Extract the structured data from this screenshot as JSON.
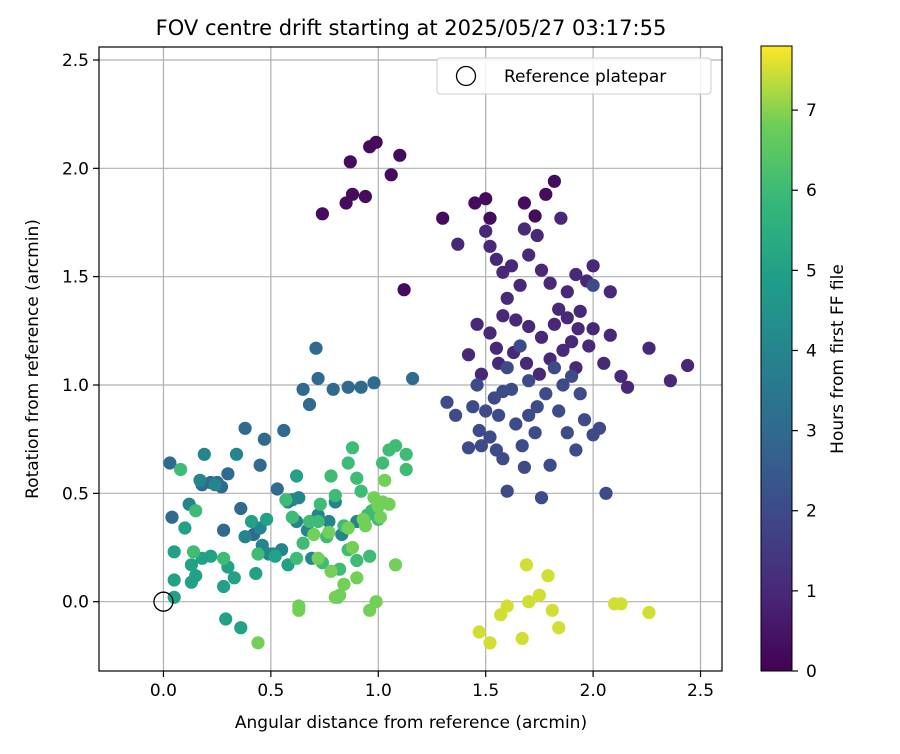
{
  "chart_data": {
    "type": "scatter",
    "title": "FOV centre drift starting at 2025/05/27 03:17:55",
    "xlabel": "Angular distance from reference (arcmin)",
    "ylabel": "Rotation from reference (arcmin)",
    "xlim": [
      -0.3,
      2.6
    ],
    "ylim": [
      -0.32,
      2.56
    ],
    "xticks": [
      0.0,
      0.5,
      1.0,
      1.5,
      2.0,
      2.5
    ],
    "xtick_labels": [
      "0.0",
      "0.5",
      "1.0",
      "1.5",
      "2.0",
      "2.5"
    ],
    "yticks": [
      0.0,
      0.5,
      1.0,
      1.5,
      2.0,
      2.5
    ],
    "ytick_labels": [
      "0.0",
      "0.5",
      "1.0",
      "1.5",
      "2.0",
      "2.5"
    ],
    "grid": true,
    "legend": {
      "placement": "upper-right",
      "entries": [
        "Reference platepar"
      ]
    },
    "reference_point": {
      "x": 0.0,
      "y": 0.0,
      "marker": "open-circle"
    },
    "colorbar": {
      "label": "Hours from first FF file",
      "colormap": "viridis",
      "range": [
        0,
        7.8
      ],
      "ticks": [
        0,
        1,
        2,
        3,
        4,
        5,
        6,
        7
      ],
      "tick_labels": [
        "0",
        "1",
        "2",
        "3",
        "4",
        "5",
        "6",
        "7"
      ]
    },
    "point_groups": [
      {
        "hours_range": [
          0.0,
          0.5
        ],
        "points": [
          [
            0.74,
            1.79
          ],
          [
            0.85,
            1.84
          ],
          [
            0.87,
            2.03
          ],
          [
            0.88,
            1.88
          ],
          [
            0.94,
            1.87
          ],
          [
            0.96,
            2.1
          ],
          [
            0.99,
            2.12
          ],
          [
            1.06,
            1.97
          ],
          [
            1.1,
            2.06
          ],
          [
            1.12,
            1.44
          ],
          [
            1.3,
            1.77
          ],
          [
            1.45,
            1.84
          ],
          [
            1.5,
            1.86
          ],
          [
            1.52,
            1.77
          ],
          [
            1.68,
            1.84
          ],
          [
            1.73,
            1.78
          ],
          [
            1.78,
            1.88
          ],
          [
            1.82,
            1.94
          ]
        ]
      },
      {
        "hours_range": [
          0.5,
          1.5
        ],
        "points": [
          [
            1.37,
            1.65
          ],
          [
            1.5,
            1.71
          ],
          [
            1.52,
            1.64
          ],
          [
            1.55,
            1.58
          ],
          [
            1.58,
            1.52
          ],
          [
            1.62,
            1.55
          ],
          [
            1.66,
            1.46
          ],
          [
            1.68,
            1.72
          ],
          [
            1.7,
            1.6
          ],
          [
            1.74,
            1.69
          ],
          [
            1.76,
            1.53
          ],
          [
            1.8,
            1.47
          ],
          [
            1.85,
            1.77
          ],
          [
            1.88,
            1.43
          ],
          [
            1.92,
            1.51
          ],
          [
            1.94,
            1.34
          ],
          [
            1.97,
            1.48
          ],
          [
            2.0,
            1.55
          ],
          [
            2.08,
            1.43
          ],
          [
            1.46,
            1.28
          ],
          [
            1.52,
            1.24
          ],
          [
            1.58,
            1.32
          ],
          [
            1.64,
            1.3
          ],
          [
            1.7,
            1.27
          ],
          [
            1.76,
            1.22
          ],
          [
            1.82,
            1.28
          ],
          [
            1.88,
            1.31
          ],
          [
            1.93,
            1.26
          ],
          [
            1.98,
            1.18
          ],
          [
            2.0,
            1.26
          ],
          [
            2.05,
            1.1
          ],
          [
            1.42,
            1.14
          ],
          [
            1.48,
            1.05
          ],
          [
            1.56,
            1.1
          ],
          [
            1.63,
            1.15
          ],
          [
            1.69,
            1.1
          ],
          [
            1.75,
            1.05
          ],
          [
            1.8,
            1.12
          ],
          [
            1.86,
            1.16
          ],
          [
            1.92,
            1.08
          ],
          [
            2.08,
            1.23
          ],
          [
            2.13,
            1.04
          ],
          [
            2.16,
            0.99
          ],
          [
            2.26,
            1.17
          ],
          [
            2.36,
            1.02
          ],
          [
            2.44,
            1.09
          ],
          [
            1.9,
            1.2
          ],
          [
            1.84,
            1.35
          ],
          [
            1.6,
            1.4
          ],
          [
            1.55,
            1.17
          ]
        ]
      },
      {
        "hours_range": [
          1.5,
          2.5
        ],
        "points": [
          [
            1.32,
            0.92
          ],
          [
            1.36,
            0.86
          ],
          [
            1.42,
            0.71
          ],
          [
            1.44,
            0.9
          ],
          [
            1.47,
            0.79
          ],
          [
            1.52,
            0.76
          ],
          [
            1.55,
            0.7
          ],
          [
            1.58,
            0.66
          ],
          [
            1.6,
            0.51
          ],
          [
            1.64,
            0.82
          ],
          [
            1.67,
            0.72
          ],
          [
            1.7,
            0.86
          ],
          [
            1.73,
            0.78
          ],
          [
            1.76,
            0.48
          ],
          [
            1.8,
            0.63
          ],
          [
            1.84,
            0.88
          ],
          [
            1.88,
            0.78
          ],
          [
            1.92,
            0.7
          ],
          [
            1.96,
            0.84
          ],
          [
            2.0,
            0.77
          ],
          [
            2.03,
            0.8
          ],
          [
            2.06,
            0.5
          ],
          [
            1.46,
            1.0
          ],
          [
            1.54,
            0.94
          ],
          [
            1.62,
            0.98
          ],
          [
            1.7,
            1.02
          ],
          [
            1.78,
            0.96
          ],
          [
            1.86,
            1.0
          ],
          [
            1.94,
            0.96
          ],
          [
            2.0,
            1.46
          ],
          [
            1.6,
            1.08
          ],
          [
            1.66,
            1.18
          ],
          [
            1.74,
            0.9
          ],
          [
            1.5,
            0.88
          ],
          [
            1.58,
            0.97
          ],
          [
            1.82,
            1.08
          ],
          [
            1.48,
            0.72
          ],
          [
            1.9,
            1.04
          ],
          [
            1.68,
            0.62
          ],
          [
            1.56,
            0.86
          ]
        ]
      },
      {
        "hours_range": [
          2.5,
          3.5
        ],
        "points": [
          [
            0.65,
            0.98
          ],
          [
            0.68,
            0.91
          ],
          [
            0.71,
            1.17
          ],
          [
            0.72,
            1.03
          ],
          [
            0.79,
            0.98
          ],
          [
            0.86,
            0.99
          ],
          [
            0.92,
            0.99
          ],
          [
            0.98,
            1.01
          ],
          [
            1.16,
            1.03
          ],
          [
            0.03,
            0.64
          ],
          [
            0.18,
            0.54
          ],
          [
            0.27,
            0.53
          ],
          [
            0.3,
            0.59
          ],
          [
            0.36,
            0.43
          ],
          [
            0.38,
            0.8
          ],
          [
            0.45,
            0.63
          ],
          [
            0.47,
            0.75
          ],
          [
            0.53,
            0.52
          ],
          [
            0.56,
            0.79
          ],
          [
            0.28,
            0.33
          ],
          [
            0.04,
            0.39
          ],
          [
            0.42,
            0.31
          ],
          [
            0.22,
            0.55
          ],
          [
            0.25,
            0.55
          ]
        ]
      },
      {
        "hours_range": [
          3.5,
          4.5
        ],
        "points": [
          [
            0.12,
            0.45
          ],
          [
            0.17,
            0.56
          ],
          [
            0.19,
            0.68
          ],
          [
            0.24,
            0.54
          ],
          [
            0.34,
            0.68
          ],
          [
            0.38,
            0.3
          ],
          [
            0.45,
            0.34
          ],
          [
            0.49,
            0.22
          ],
          [
            0.51,
            0.22
          ],
          [
            0.55,
            0.24
          ],
          [
            0.6,
            0.47
          ],
          [
            0.63,
            0.48
          ],
          [
            0.67,
            0.33
          ],
          [
            0.69,
            0.2
          ],
          [
            0.72,
            0.4
          ],
          [
            0.77,
            0.37
          ],
          [
            0.83,
            0.31
          ],
          [
            0.9,
            0.37
          ],
          [
            0.46,
            0.26
          ],
          [
            0.58,
            0.46
          ],
          [
            0.62,
            0.37
          ],
          [
            0.8,
            0.46
          ]
        ]
      },
      {
        "hours_range": [
          4.5,
          5.5
        ],
        "points": [
          [
            0.05,
            0.02
          ],
          [
            0.05,
            0.1
          ],
          [
            0.1,
            0.34
          ],
          [
            0.13,
            0.09
          ],
          [
            0.15,
            0.12
          ],
          [
            0.18,
            0.2
          ],
          [
            0.22,
            0.21
          ],
          [
            0.28,
            0.07
          ],
          [
            0.29,
            -0.08
          ],
          [
            0.3,
            0.16
          ],
          [
            0.33,
            0.11
          ],
          [
            0.36,
            -0.12
          ],
          [
            0.41,
            0.37
          ],
          [
            0.43,
            0.13
          ],
          [
            0.48,
            0.38
          ],
          [
            0.52,
            0.21
          ],
          [
            0.58,
            0.17
          ],
          [
            0.62,
            0.58
          ],
          [
            0.05,
            0.23
          ],
          [
            0.13,
            0.17
          ]
        ]
      },
      {
        "hours_range": [
          5.5,
          6.5
        ],
        "points": [
          [
            0.08,
            0.61
          ],
          [
            0.14,
            0.23
          ],
          [
            0.15,
            0.42
          ],
          [
            0.28,
            0.2
          ],
          [
            0.44,
            0.22
          ],
          [
            0.57,
            0.47
          ],
          [
            0.62,
            0.2
          ],
          [
            0.65,
            0.27
          ],
          [
            0.68,
            0.37
          ],
          [
            0.72,
            0.37
          ],
          [
            0.76,
            0.3
          ],
          [
            0.78,
            0.58
          ],
          [
            0.8,
            0.49
          ],
          [
            0.84,
            0.35
          ],
          [
            0.86,
            0.64
          ],
          [
            0.88,
            0.71
          ],
          [
            0.9,
            0.57
          ],
          [
            0.92,
            0.51
          ],
          [
            0.95,
            0.4
          ],
          [
            0.97,
            0.42
          ],
          [
            1.0,
            0.38
          ],
          [
            1.02,
            0.64
          ],
          [
            1.05,
            0.7
          ],
          [
            1.08,
            0.72
          ],
          [
            1.13,
            0.68
          ],
          [
            1.13,
            0.61
          ],
          [
            0.74,
            0.18
          ],
          [
            0.82,
            0.15
          ],
          [
            0.86,
            0.24
          ],
          [
            0.9,
            0.19
          ],
          [
            0.96,
            0.21
          ],
          [
            0.73,
            0.45
          ],
          [
            0.81,
            0.02
          ],
          [
            0.6,
            0.39
          ]
        ]
      },
      {
        "hours_range": [
          6.5,
          7.2
        ],
        "points": [
          [
            0.44,
            -0.19
          ],
          [
            0.63,
            -0.02
          ],
          [
            0.63,
            -0.04
          ],
          [
            0.72,
            0.2
          ],
          [
            0.78,
            0.14
          ],
          [
            0.8,
            0.02
          ],
          [
            0.82,
            0.03
          ],
          [
            0.84,
            0.08
          ],
          [
            0.88,
            0.25
          ],
          [
            0.9,
            0.11
          ],
          [
            0.93,
            0.38
          ],
          [
            0.96,
            -0.04
          ],
          [
            0.99,
            0.0
          ],
          [
            1.0,
            0.44
          ],
          [
            1.02,
            0.46
          ],
          [
            1.05,
            0.45
          ],
          [
            1.08,
            0.17
          ],
          [
            0.94,
            0.35
          ],
          [
            0.98,
            0.48
          ],
          [
            0.77,
            0.32
          ],
          [
            0.86,
            0.34
          ],
          [
            0.7,
            0.31
          ],
          [
            1.03,
            0.56
          ],
          [
            1.01,
            0.39
          ]
        ]
      },
      {
        "hours_range": [
          7.2,
          7.8
        ],
        "points": [
          [
            1.47,
            -0.14
          ],
          [
            1.52,
            -0.19
          ],
          [
            1.57,
            -0.06
          ],
          [
            1.6,
            -0.02
          ],
          [
            1.67,
            -0.17
          ],
          [
            1.69,
            0.17
          ],
          [
            1.7,
            0.0
          ],
          [
            1.75,
            0.03
          ],
          [
            1.79,
            0.12
          ],
          [
            1.81,
            -0.04
          ],
          [
            1.84,
            -0.12
          ],
          [
            2.1,
            -0.01
          ],
          [
            2.13,
            -0.01
          ],
          [
            2.26,
            -0.05
          ]
        ]
      }
    ]
  }
}
